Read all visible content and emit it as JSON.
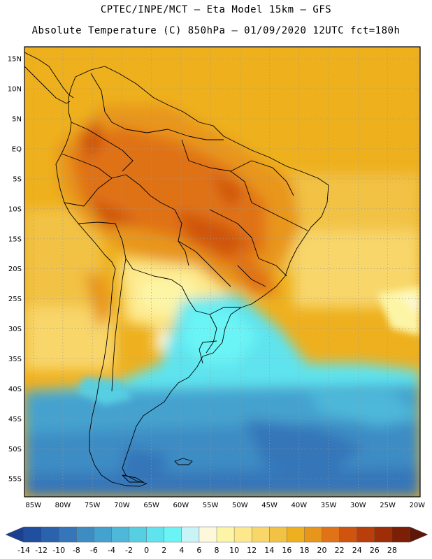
{
  "header": {
    "line1": "CPTEC/INPE/MCT –  Eta Model 15km – GFS",
    "line2": "Absolute Temperature (C) 850hPa – 01/09/2020 12UTC fct=180h"
  },
  "map": {
    "lat_labels": [
      "15N",
      "10N",
      "5N",
      "EQ",
      "5S",
      "10S",
      "15S",
      "20S",
      "25S",
      "30S",
      "35S",
      "40S",
      "45S",
      "50S",
      "55S"
    ],
    "lat_values": [
      15,
      10,
      5,
      0,
      -5,
      -10,
      -15,
      -20,
      -25,
      -30,
      -35,
      -40,
      -45,
      -50,
      -55
    ],
    "lon_labels": [
      "85W",
      "80W",
      "75W",
      "70W",
      "65W",
      "60W",
      "55W",
      "50W",
      "45W",
      "40W",
      "35W",
      "30W",
      "25W",
      "20W"
    ],
    "lon_values": [
      -85,
      -80,
      -75,
      -70,
      -65,
      -60,
      -55,
      -50,
      -45,
      -40,
      -35,
      -30,
      -25,
      -20
    ],
    "extent": {
      "lon": [
        -86.5,
        -19.5
      ],
      "lat": [
        -58,
        17
      ]
    }
  },
  "colorbar": {
    "labels": [
      "-14",
      "-12",
      "-10",
      "-8",
      "-6",
      "-4",
      "-2",
      "0",
      "2",
      "4",
      "6",
      "8",
      "10",
      "12",
      "14",
      "16",
      "18",
      "20",
      "22",
      "24",
      "26",
      "28"
    ],
    "colors": [
      "#1c3f8f",
      "#1f4f9e",
      "#2a62ad",
      "#3476b9",
      "#3d8cc4",
      "#44a2cf",
      "#4db8da",
      "#56cfe3",
      "#5fe3ee",
      "#6af4f6",
      "#c8f3f7",
      "#fdf8dc",
      "#fdf5a6",
      "#fde98c",
      "#f8d66a",
      "#f2c244",
      "#eeb01e",
      "#e8961b",
      "#e07217",
      "#cf5410",
      "#b83e0a",
      "#9d2e08",
      "#7d1f07",
      "#5e1607"
    ]
  }
}
